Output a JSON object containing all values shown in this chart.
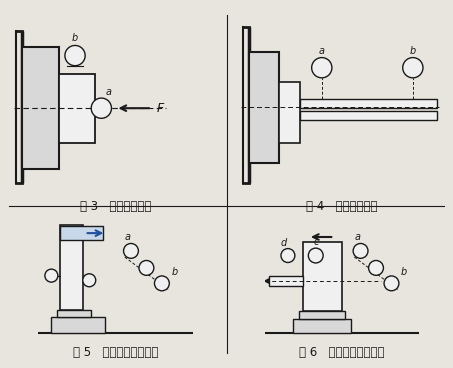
{
  "bg_color": "#e8e4de",
  "line_color": "#1a1a1a",
  "fill_light": "#f0f0f0",
  "fill_mid": "#d8d8d8",
  "fill_dark": "#b8b8b8",
  "fig3_caption": "图 3   端面跳动测量",
  "fig4_caption": "图 4   近、远端跳动",
  "fig5_caption": "图 5   主轴上侧母线测量",
  "fig6_caption": "图 6   尾架上侧母线测量",
  "caption_fontsize": 8.5
}
